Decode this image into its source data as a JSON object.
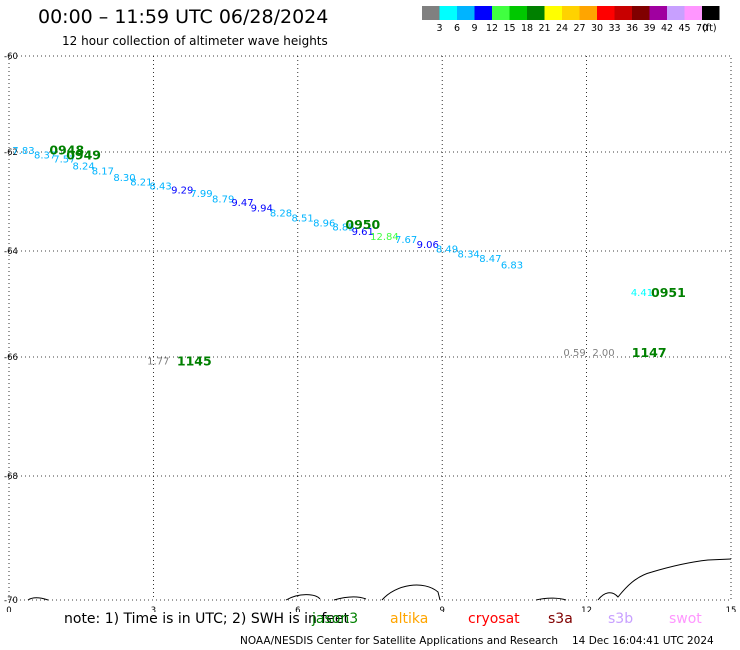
{
  "header": {
    "title": "00:00 – 11:59 UTC 06/28/2024",
    "subtitle": "12 hour collection of altimeter wave heights"
  },
  "colorbar": {
    "colors": [
      "#808080",
      "#00ffff",
      "#00b4ff",
      "#0000ff",
      "#40ff40",
      "#00c800",
      "#008000",
      "#ffff00",
      "#ffd200",
      "#ffa500",
      "#ff0000",
      "#c80000",
      "#800000",
      "#a000a0",
      "#c8a0ff",
      "#ff96ff",
      "#000000"
    ],
    "labels": [
      "3",
      "6",
      "9",
      "12",
      "15",
      "18",
      "21",
      "24",
      "27",
      "30",
      "33",
      "36",
      "39",
      "42",
      "45",
      "70"
    ],
    "unit": "(ft)"
  },
  "chart_data": {
    "type": "scatter",
    "xlim": [
      0,
      15
    ],
    "ylim": [
      -60,
      -70
    ],
    "x_ticks": [
      "0",
      "3",
      "6",
      "9",
      "12",
      "15"
    ],
    "y_ticks": [
      "-60",
      "-62",
      "-64",
      "-66",
      "-68",
      "-70"
    ],
    "grid": true,
    "points": [
      {
        "x": 0.3,
        "y": -61.96,
        "label": "7.83",
        "color": "#00b4ff"
      },
      {
        "x": 0.75,
        "y": -62.05,
        "label": "8.37",
        "color": "#00b4ff"
      },
      {
        "x": 1.15,
        "y": -62.13,
        "label": "7.57",
        "color": "#00b4ff"
      },
      {
        "x": 1.55,
        "y": -62.27,
        "label": "8.24",
        "color": "#00b4ff"
      },
      {
        "x": 1.95,
        "y": -62.37,
        "label": "8.17",
        "color": "#00b4ff"
      },
      {
        "x": 2.4,
        "y": -62.5,
        "label": "8.30",
        "color": "#00b4ff"
      },
      {
        "x": 2.75,
        "y": -62.6,
        "label": "8.21",
        "color": "#00b4ff"
      },
      {
        "x": 3.15,
        "y": -62.68,
        "label": "8.43",
        "color": "#00b4ff"
      },
      {
        "x": 3.6,
        "y": -62.76,
        "label": "9.29",
        "color": "#0000ff"
      },
      {
        "x": 4.0,
        "y": -62.83,
        "label": "7.99",
        "color": "#00b4ff"
      },
      {
        "x": 4.45,
        "y": -62.94,
        "label": "8.79",
        "color": "#00b4ff"
      },
      {
        "x": 4.85,
        "y": -63.01,
        "label": "9.47",
        "color": "#0000ff"
      },
      {
        "x": 5.25,
        "y": -63.12,
        "label": "9.94",
        "color": "#0000ff"
      },
      {
        "x": 5.65,
        "y": -63.22,
        "label": "8.28",
        "color": "#00b4ff"
      },
      {
        "x": 6.1,
        "y": -63.32,
        "label": "8.51",
        "color": "#00b4ff"
      },
      {
        "x": 6.55,
        "y": -63.42,
        "label": "8.96",
        "color": "#00b4ff"
      },
      {
        "x": 6.95,
        "y": -63.5,
        "label": "8.85",
        "color": "#00b4ff"
      },
      {
        "x": 7.35,
        "y": -63.6,
        "label": "9.61",
        "color": "#0000ff"
      },
      {
        "x": 7.8,
        "y": -63.7,
        "label": "12.84",
        "color": "#40ff40"
      },
      {
        "x": 8.25,
        "y": -63.76,
        "label": "7.67",
        "color": "#00b4ff"
      },
      {
        "x": 8.7,
        "y": -63.86,
        "label": "9.06",
        "color": "#0000ff"
      },
      {
        "x": 9.1,
        "y": -63.95,
        "label": "8.49",
        "color": "#00b4ff"
      },
      {
        "x": 9.55,
        "y": -64.05,
        "label": "8.34",
        "color": "#00b4ff"
      },
      {
        "x": 10.0,
        "y": -64.13,
        "label": "8.47",
        "color": "#00b4ff"
      },
      {
        "x": 10.45,
        "y": -64.25,
        "label": "6.83",
        "color": "#00b4ff"
      },
      {
        "x": 13.15,
        "y": -64.77,
        "label": "4.41",
        "color": "#00ffff"
      },
      {
        "x": 11.75,
        "y": -65.91,
        "label": "0.59",
        "color": "#808080"
      },
      {
        "x": 12.35,
        "y": -65.91,
        "label": "2.00",
        "color": "#808080"
      },
      {
        "x": 3.1,
        "y": -66.06,
        "label": "1.77",
        "color": "#808080"
      }
    ],
    "time_labels": [
      {
        "x": 1.2,
        "y": -61.95,
        "label": "0948",
        "color": "#008000"
      },
      {
        "x": 1.55,
        "y": -62.05,
        "label": "0949",
        "color": "#008000"
      },
      {
        "x": 7.35,
        "y": -63.45,
        "label": "0950",
        "color": "#008000"
      },
      {
        "x": 13.7,
        "y": -64.77,
        "label": "0951",
        "color": "#008000"
      },
      {
        "x": 3.85,
        "y": -66.06,
        "label": "1145",
        "color": "#008000"
      },
      {
        "x": 13.3,
        "y": -65.91,
        "label": "1147",
        "color": "#008000"
      }
    ]
  },
  "footer": {
    "note": "note: 1) Time is in UTC; 2) SWH is in feet",
    "satellites": [
      {
        "name": "jason3",
        "color": "#008000"
      },
      {
        "name": "altika",
        "color": "#ffa500"
      },
      {
        "name": "cryosat",
        "color": "#ff0000"
      },
      {
        "name": "s3a",
        "color": "#800000"
      },
      {
        "name": "s3b",
        "color": "#c8a0ff"
      },
      {
        "name": "swot",
        "color": "#ff96ff"
      }
    ],
    "credit": "NOAA/NESDIS Center for Satellite Applications and Research",
    "timestamp": "14 Dec 16:04:41 UTC 2024"
  }
}
